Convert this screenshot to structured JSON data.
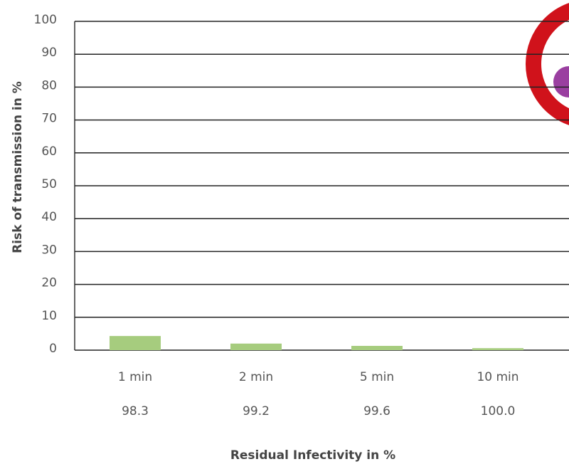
{
  "chart_data": {
    "type": "bar",
    "y_label": "Risk of transmission in %",
    "x_label": "Residual Infectivity in %",
    "categories": [
      "1 min",
      "2 min",
      "5 min",
      "10 min"
    ],
    "sublabels": [
      "98.3",
      "99.2",
      "99.6",
      "100.0"
    ],
    "values": [
      4.3,
      2,
      1.3,
      0.6
    ],
    "color": "#a6cc7e",
    "ylim": [
      0,
      100
    ],
    "yticks": [
      0,
      10,
      20,
      30,
      40,
      50,
      60,
      70,
      80,
      90,
      100
    ],
    "grid": true
  }
}
